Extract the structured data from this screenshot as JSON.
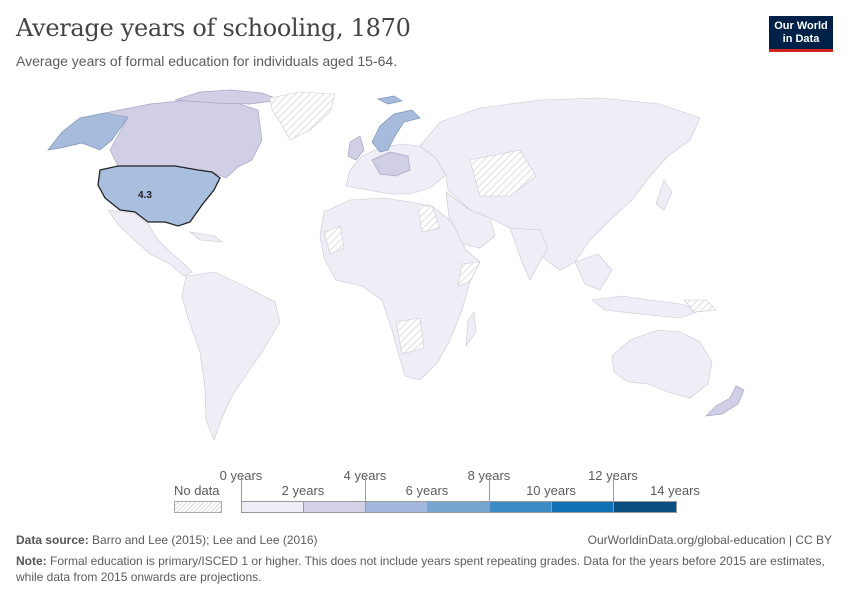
{
  "header": {
    "title": "Average years of schooling, 1870",
    "subtitle": "Average years of formal education for individuals aged 15-64.",
    "logo_line1": "Our World",
    "logo_line2": "in Data"
  },
  "map": {
    "annotations": [
      {
        "country": "United States",
        "value": "4.3"
      }
    ]
  },
  "legend": {
    "no_data_label": "No data",
    "top_labels": [
      "0 years",
      "4 years",
      "8 years",
      "12 years"
    ],
    "bottom_labels": [
      "2 years",
      "6 years",
      "10 years",
      "14 years"
    ],
    "bin_colors": [
      "#efedf5",
      "#d3d1e8",
      "#a3b7dc",
      "#77a5d1",
      "#3d8bc4",
      "#1070b2",
      "#0b4f7f"
    ]
  },
  "footer": {
    "source_label": "Data source:",
    "source_text": "Barro and Lee (2015); Lee and Lee (2016)",
    "url": "OurWorldinData.org/global-education | CC BY",
    "note_label": "Note:",
    "note_text": "Formal education is primary/ISCED 1 or higher. This does not include years spent repeating grades. Data for the years before 2015 are estimates, while data from 2015 onwards are projections."
  }
}
